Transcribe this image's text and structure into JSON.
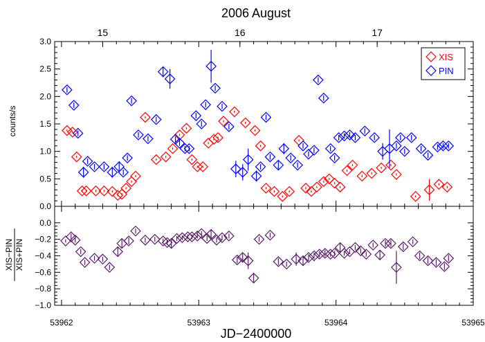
{
  "chart_data": {
    "type": "scatter",
    "top_title": "2006 August",
    "top_ticks": [
      "15",
      "16",
      "17"
    ],
    "top_tick_jd": [
      53962.3,
      53963.3,
      53964.3
    ],
    "xlabel": "JD−2400000",
    "xlim": [
      53961.95,
      53965.0
    ],
    "x_ticks": [
      53962,
      53963,
      53964,
      53965
    ],
    "x_tick_labels": [
      "53962",
      "53963",
      "53964",
      "53965"
    ],
    "panels": [
      {
        "ylabel": "counts/s",
        "ylim": [
          0.0,
          3.0
        ],
        "y_ticks": [
          0.0,
          0.5,
          1.0,
          1.5,
          2.0,
          2.5,
          3.0
        ],
        "y_tick_labels": [
          "0.0",
          "0.5",
          "1.0",
          "1.5",
          "2.0",
          "2.5",
          "3.0"
        ],
        "legend_position": "top-right",
        "series": [
          {
            "name": "XIS",
            "color": "#ff0000",
            "x": [
              53962.04,
              53962.08,
              53962.11,
              53962.15,
              53962.18,
              53962.25,
              53962.31,
              53962.37,
              53962.41,
              53962.44,
              53962.47,
              53962.51,
              53962.54,
              53962.61,
              53962.69,
              53962.76,
              53962.81,
              53962.86,
              53962.91,
              53962.95,
              53962.99,
              53963.03,
              53963.07,
              53963.11,
              53963.14,
              53963.18,
              53963.26,
              53963.34,
              53963.41,
              53963.45,
              53963.49,
              53963.55,
              53963.61,
              53963.66,
              53963.73,
              53963.78,
              53963.82,
              53963.86,
              53963.91,
              53963.95,
              53963.99,
              53964.03,
              53964.08,
              53964.12,
              53964.19,
              53964.26,
              53964.33,
              53964.4,
              53964.44,
              53964.58,
              53964.68,
              53964.75,
              53964.81
            ],
            "y": [
              1.38,
              1.35,
              0.9,
              0.28,
              0.28,
              0.28,
              0.28,
              0.27,
              0.2,
              0.22,
              0.33,
              0.45,
              0.55,
              1.62,
              0.85,
              0.9,
              1.05,
              1.3,
              1.42,
              0.85,
              0.72,
              0.72,
              1.15,
              1.22,
              1.25,
              1.55,
              1.72,
              1.52,
              1.38,
              1.1,
              0.33,
              0.27,
              0.18,
              0.27,
              1.2,
              0.33,
              0.27,
              0.35,
              0.45,
              0.5,
              0.42,
              0.35,
              0.65,
              0.75,
              0.55,
              0.6,
              0.7,
              0.75,
              0.58,
              0.18,
              0.3,
              0.4,
              0.35
            ],
            "yerr": [
              0.02,
              0.02,
              0.02,
              0.02,
              0.02,
              0.02,
              0.02,
              0.02,
              0.02,
              0.02,
              0.02,
              0.02,
              0.02,
              0.02,
              0.02,
              0.02,
              0.02,
              0.02,
              0.02,
              0.02,
              0.02,
              0.02,
              0.02,
              0.02,
              0.02,
              0.02,
              0.02,
              0.02,
              0.02,
              0.02,
              0.02,
              0.02,
              0.02,
              0.02,
              0.02,
              0.02,
              0.02,
              0.02,
              0.02,
              0.02,
              0.02,
              0.02,
              0.02,
              0.02,
              0.02,
              0.02,
              0.02,
              0.02,
              0.02,
              0.02,
              0.2,
              0.02,
              0.02
            ]
          },
          {
            "name": "PIN",
            "color": "#0000ff",
            "x": [
              53962.04,
              53962.09,
              53962.12,
              53962.16,
              53962.19,
              53962.24,
              53962.31,
              53962.37,
              53962.42,
              53962.45,
              53962.48,
              53962.51,
              53962.56,
              53962.63,
              53962.69,
              53962.74,
              53962.79,
              53962.83,
              53962.86,
              53962.9,
              53962.93,
              53962.98,
              53963.02,
              53963.05,
              53963.09,
              53963.12,
              53963.17,
              53963.22,
              53963.27,
              53963.32,
              53963.36,
              53963.42,
              53963.45,
              53963.49,
              53963.52,
              53963.58,
              53963.62,
              53963.67,
              53963.72,
              53963.76,
              53963.8,
              53963.84,
              53963.87,
              53963.91,
              53963.96,
              53963.99,
              53964.02,
              53964.06,
              53964.1,
              53964.14,
              53964.21,
              53964.28,
              53964.34,
              53964.39,
              53964.44,
              53964.47,
              53964.5,
              53964.55,
              53964.62,
              53964.67,
              53964.74,
              53964.78,
              53964.82
            ],
            "y": [
              2.12,
              1.84,
              1.33,
              0.62,
              0.82,
              0.72,
              0.72,
              0.62,
              0.72,
              0.62,
              0.88,
              1.92,
              1.3,
              1.23,
              1.58,
              2.45,
              2.32,
              1.22,
              1.15,
              1.05,
              1.05,
              1.65,
              1.5,
              1.85,
              2.55,
              2.15,
              1.82,
              1.45,
              0.68,
              0.62,
              0.85,
              0.55,
              0.72,
              1.62,
              0.9,
              0.75,
              1.05,
              0.88,
              0.75,
              1.1,
              0.95,
              1.02,
              2.3,
              1.97,
              1.05,
              0.88,
              1.25,
              1.28,
              1.3,
              1.25,
              1.37,
              1.25,
              1.0,
              1.05,
              1.1,
              1.25,
              1.0,
              1.25,
              1.05,
              0.93,
              1.08,
              1.1,
              1.1
            ],
            "yerr": [
              0.05,
              0.05,
              0.05,
              0.1,
              0.05,
              0.05,
              0.05,
              0.1,
              0.1,
              0.05,
              0.05,
              0.05,
              0.05,
              0.05,
              0.05,
              0.1,
              0.18,
              0.05,
              0.05,
              0.05,
              0.05,
              0.05,
              0.05,
              0.05,
              0.3,
              0.05,
              0.05,
              0.05,
              0.15,
              0.15,
              0.2,
              0.1,
              0.05,
              0.05,
              0.05,
              0.08,
              0.1,
              0.05,
              0.05,
              0.05,
              0.05,
              0.05,
              0.05,
              0.05,
              0.05,
              0.05,
              0.05,
              0.05,
              0.05,
              0.05,
              0.05,
              0.05,
              0.15,
              0.35,
              0.05,
              0.05,
              0.05,
              0.05,
              0.05,
              0.05,
              0.05,
              0.05,
              0.05
            ]
          }
        ]
      },
      {
        "ylabel_numerator": "XIS−PIN",
        "ylabel_denominator": "XIS+PIN",
        "ylim": [
          -1.0,
          0.2
        ],
        "y_ticks": [
          -1.0,
          -0.8,
          -0.6,
          -0.4,
          -0.2,
          0.0
        ],
        "y_tick_labels": [
          "−1.0",
          "−0.8",
          "−0.6",
          "−0.4",
          "−0.2",
          "0.0"
        ],
        "series": [
          {
            "name": "",
            "color": "#5a1a6a",
            "x": [
              53962.03,
              53962.07,
              53962.1,
              53962.14,
              53962.17,
              53962.24,
              53962.3,
              53962.35,
              53962.41,
              53962.44,
              53962.49,
              53962.54,
              53962.61,
              53962.68,
              53962.74,
              53962.77,
              53962.8,
              53962.84,
              53962.88,
              53962.92,
              53962.95,
              53962.99,
              53963.02,
              53963.06,
              53963.09,
              53963.13,
              53963.17,
              53963.22,
              53963.28,
              53963.32,
              53963.36,
              53963.4,
              53963.44,
              53963.52,
              53963.58,
              53963.64,
              53963.71,
              53963.76,
              53963.8,
              53963.84,
              53963.88,
              53963.92,
              53963.96,
              53963.99,
              53964.03,
              53964.06,
              53964.1,
              53964.14,
              53964.18,
              53964.22,
              53964.27,
              53964.32,
              53964.36,
              53964.4,
              53964.44,
              53964.49,
              53964.56,
              53964.61,
              53964.67,
              53964.73,
              53964.79,
              53964.82
            ],
            "y": [
              -0.22,
              -0.17,
              -0.21,
              -0.35,
              -0.48,
              -0.43,
              -0.44,
              -0.54,
              -0.35,
              -0.25,
              -0.22,
              -0.1,
              -0.21,
              -0.2,
              -0.22,
              -0.24,
              -0.25,
              -0.19,
              -0.18,
              -0.17,
              -0.17,
              -0.16,
              -0.13,
              -0.19,
              -0.14,
              -0.21,
              -0.18,
              -0.16,
              -0.45,
              -0.42,
              -0.46,
              -0.67,
              -0.2,
              -0.15,
              -0.47,
              -0.5,
              -0.44,
              -0.46,
              -0.42,
              -0.4,
              -0.38,
              -0.37,
              -0.38,
              -0.37,
              -0.3,
              -0.37,
              -0.35,
              -0.3,
              -0.34,
              -0.38,
              -0.27,
              -0.39,
              -0.25,
              -0.25,
              -0.54,
              -0.29,
              -0.23,
              -0.4,
              -0.46,
              -0.48,
              -0.53,
              -0.43
            ],
            "yerr": [
              0.02,
              0.04,
              0.03,
              0.03,
              0.03,
              0.03,
              0.03,
              0.03,
              0.05,
              0.06,
              0.04,
              0.03,
              0.03,
              0.03,
              0.03,
              0.03,
              0.05,
              0.03,
              0.03,
              0.03,
              0.03,
              0.03,
              0.03,
              0.03,
              0.05,
              0.03,
              0.03,
              0.03,
              0.04,
              0.05,
              0.1,
              0.05,
              0.03,
              0.03,
              0.04,
              0.03,
              0.08,
              0.06,
              0.04,
              0.04,
              0.04,
              0.04,
              0.03,
              0.03,
              0.05,
              0.03,
              0.03,
              0.03,
              0.03,
              0.03,
              0.03,
              0.05,
              0.04,
              0.04,
              0.2,
              0.04,
              0.03,
              0.04,
              0.04,
              0.04,
              0.04,
              0.04
            ]
          }
        ]
      }
    ]
  }
}
